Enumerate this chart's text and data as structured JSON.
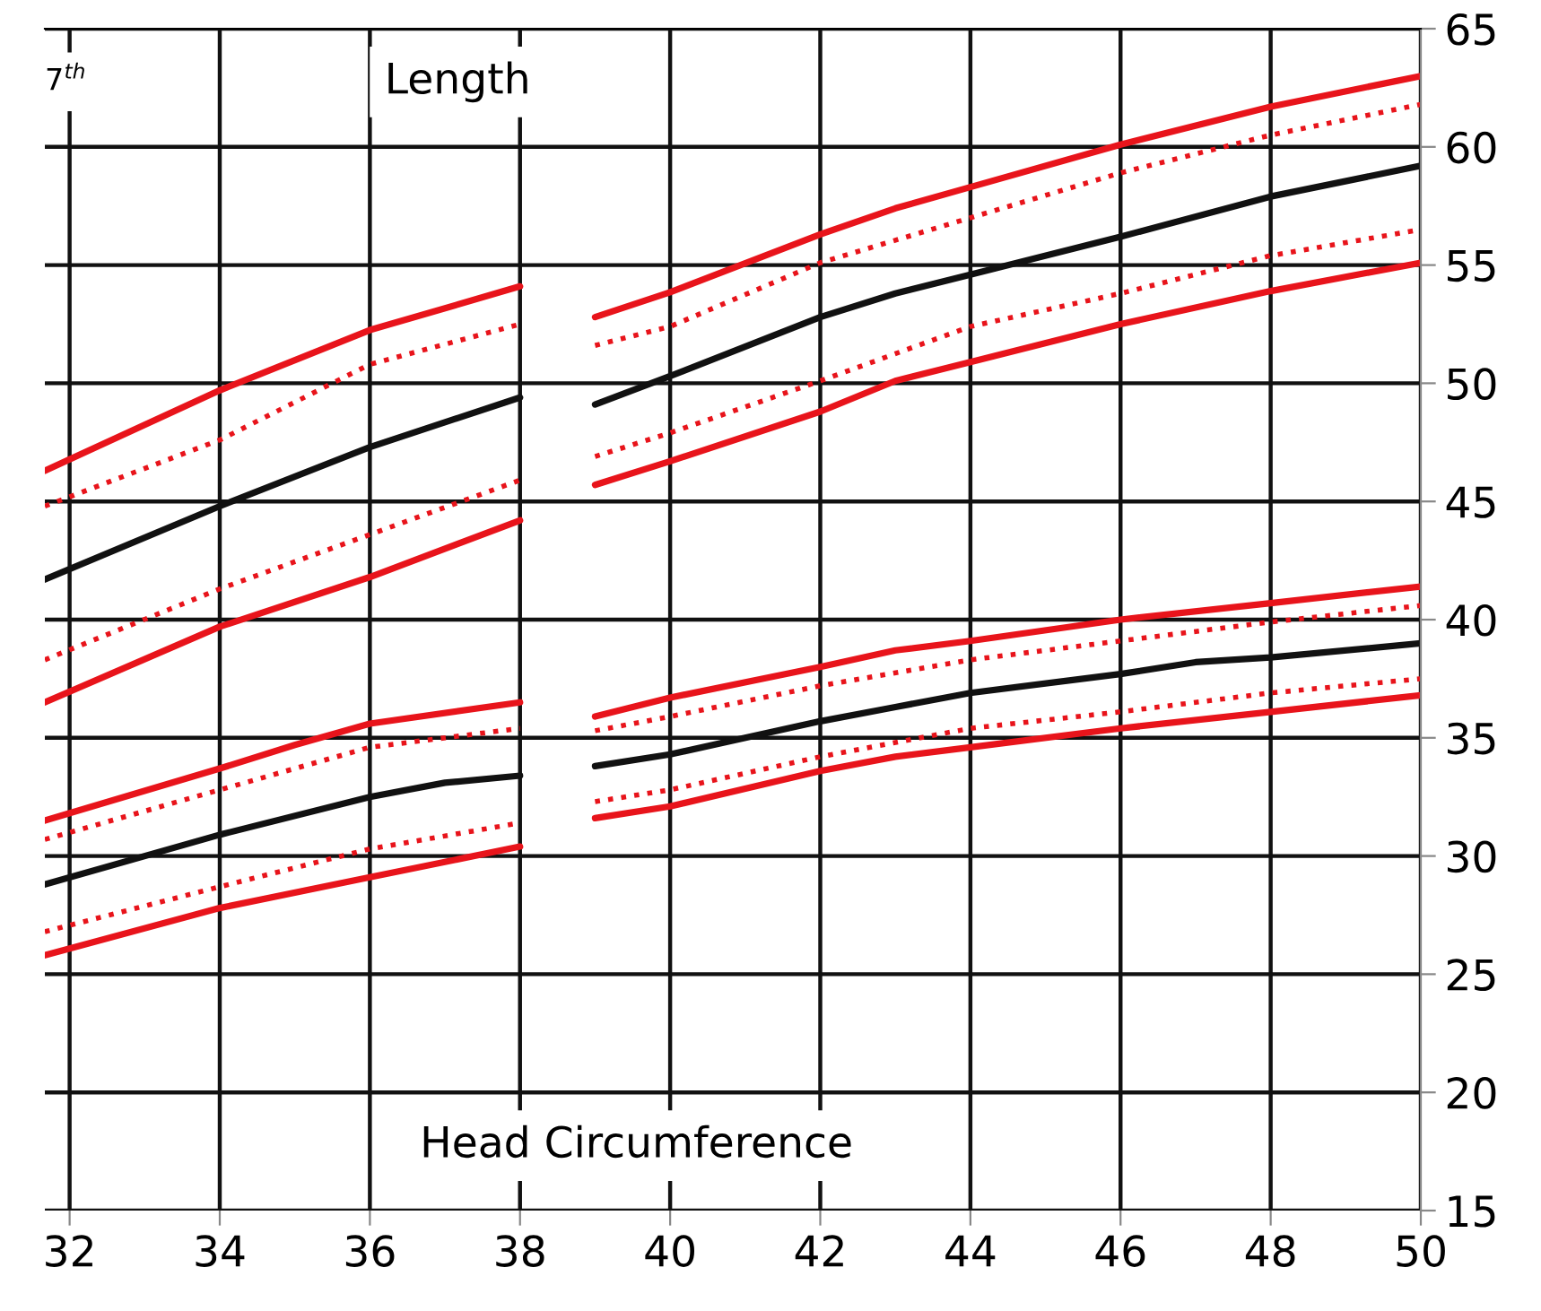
{
  "chart_data": {
    "type": "line",
    "annotations": [
      "7$^{th}$",
      "Length",
      "Head Circumference"
    ],
    "xlim": [
      31.67,
      50
    ],
    "ylim": [
      15,
      65
    ],
    "xticks": [
      32,
      34,
      36,
      38,
      40,
      42,
      44,
      46,
      48,
      50
    ],
    "yticks": [
      15,
      20,
      25,
      30,
      35,
      40,
      45,
      50,
      55,
      60,
      65
    ],
    "grid": true,
    "legend": false,
    "marker": "none",
    "series": [
      {
        "color": "#e8141b",
        "line_style": "solid",
        "x": [
          31.67,
          34,
          36,
          38,
          38.5,
          39,
          40,
          42,
          43,
          44,
          46,
          48,
          50
        ],
        "values": [
          46.3,
          49.7,
          52.25,
          54.1,
          null,
          52.8,
          53.85,
          56.3,
          57.4,
          58.3,
          60.1,
          61.7,
          63.0
        ]
      },
      {
        "color": "#e8141b",
        "line_style": "dotted",
        "x": [
          31.67,
          34,
          36,
          38,
          38.5,
          39,
          40,
          42,
          44,
          46,
          48,
          50
        ],
        "values": [
          44.8,
          47.6,
          50.8,
          52.5,
          null,
          51.6,
          52.4,
          55.1,
          57.0,
          58.9,
          60.5,
          61.8
        ]
      },
      {
        "color": "#111111",
        "line_style": "solid",
        "x": [
          31.67,
          34,
          36,
          38,
          38.5,
          39,
          40,
          42,
          43,
          44,
          46,
          48,
          50
        ],
        "values": [
          41.7,
          44.8,
          47.3,
          49.4,
          null,
          49.1,
          50.3,
          52.8,
          53.8,
          54.6,
          56.2,
          57.9,
          59.2
        ]
      },
      {
        "color": "#e8141b",
        "line_style": "dotted",
        "x": [
          31.67,
          34,
          36,
          38,
          38.5,
          39,
          40,
          42,
          44,
          46,
          48,
          50
        ],
        "values": [
          38.3,
          41.3,
          43.6,
          45.9,
          null,
          46.9,
          47.9,
          50.1,
          52.4,
          53.8,
          55.4,
          56.5
        ]
      },
      {
        "color": "#e8141b",
        "line_style": "solid",
        "x": [
          31.67,
          34,
          36,
          38,
          38.5,
          39,
          40,
          42,
          43,
          44,
          46,
          48,
          50
        ],
        "values": [
          36.5,
          39.7,
          41.8,
          44.2,
          null,
          45.7,
          46.7,
          48.8,
          50.1,
          50.9,
          52.5,
          53.9,
          55.1
        ]
      },
      {
        "color": "#e8141b",
        "line_style": "solid",
        "x": [
          31.67,
          34,
          35,
          36,
          38,
          38.5,
          39,
          40,
          42,
          43,
          44,
          46,
          48,
          50
        ],
        "values": [
          31.5,
          33.7,
          34.7,
          35.6,
          36.5,
          null,
          35.9,
          36.7,
          38.0,
          38.7,
          39.1,
          40.0,
          40.7,
          41.4
        ]
      },
      {
        "color": "#e8141b",
        "line_style": "dotted",
        "x": [
          31.67,
          34,
          36,
          38,
          38.5,
          39,
          40,
          42,
          44,
          46,
          48,
          50
        ],
        "values": [
          30.7,
          32.8,
          34.6,
          35.4,
          null,
          35.3,
          35.9,
          37.2,
          38.3,
          39.1,
          39.9,
          40.6
        ]
      },
      {
        "color": "#111111",
        "line_style": "solid",
        "x": [
          31.67,
          34,
          36,
          37,
          38,
          38.5,
          39,
          40,
          42,
          43,
          44,
          46,
          47,
          48,
          50
        ],
        "values": [
          28.8,
          30.9,
          32.5,
          33.1,
          33.4,
          null,
          33.8,
          34.3,
          35.7,
          36.3,
          36.9,
          37.7,
          38.2,
          38.4,
          39.0
        ]
      },
      {
        "color": "#e8141b",
        "line_style": "dotted",
        "x": [
          31.67,
          34,
          36,
          38,
          38.5,
          39,
          40,
          42,
          44,
          46,
          48,
          50
        ],
        "values": [
          26.8,
          28.7,
          30.3,
          31.4,
          null,
          32.3,
          32.8,
          34.2,
          35.4,
          36.1,
          36.9,
          37.5
        ]
      },
      {
        "color": "#e8141b",
        "line_style": "solid",
        "x": [
          31.67,
          34,
          36,
          38,
          38.5,
          39,
          40,
          42,
          43,
          44,
          46,
          48,
          50
        ],
        "values": [
          25.8,
          27.8,
          29.1,
          30.4,
          null,
          31.6,
          32.1,
          33.6,
          34.2,
          34.6,
          35.4,
          36.1,
          36.8
        ]
      }
    ]
  }
}
